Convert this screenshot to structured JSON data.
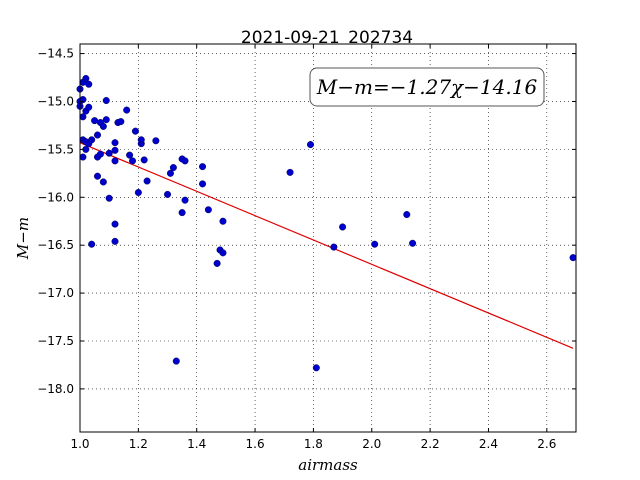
{
  "chart_data": {
    "type": "scatter",
    "title": "2021-09-21_202734",
    "xlabel": "airmass",
    "ylabel": "M−m",
    "xlim": [
      1.0,
      2.7
    ],
    "ylim": [
      -18.45,
      -14.4
    ],
    "x_ticks": [
      1.0,
      1.2,
      1.4,
      1.6,
      1.8,
      2.0,
      2.2,
      2.4,
      2.6
    ],
    "x_tick_labels": [
      "1.0",
      "1.2",
      "1.4",
      "1.6",
      "1.8",
      "2.0",
      "2.2",
      "2.4",
      "2.6"
    ],
    "y_ticks": [
      -14.5,
      -15.0,
      -15.5,
      -16.0,
      -16.5,
      -17.0,
      -17.5,
      -18.0
    ],
    "y_tick_labels": [
      "−14.5",
      "−15.0",
      "−15.5",
      "−16.0",
      "−16.5",
      "−17.0",
      "−17.5",
      "−18.0"
    ],
    "grid": true,
    "annotation": "M−m=−1.27χ−14.16",
    "fit": {
      "slope": -1.27,
      "intercept": -14.16,
      "x_range": [
        1.0,
        2.69
      ],
      "color": "#e00000"
    },
    "marker_color": "#0000cc",
    "points": [
      {
        "x": 1.0,
        "y": -14.87
      },
      {
        "x": 1.0,
        "y": -15.0
      },
      {
        "x": 1.0,
        "y": -15.05
      },
      {
        "x": 1.01,
        "y": -14.8
      },
      {
        "x": 1.02,
        "y": -14.76
      },
      {
        "x": 1.03,
        "y": -14.82
      },
      {
        "x": 1.01,
        "y": -14.98
      },
      {
        "x": 1.02,
        "y": -15.1
      },
      {
        "x": 1.03,
        "y": -15.06
      },
      {
        "x": 1.01,
        "y": -15.16
      },
      {
        "x": 1.01,
        "y": -15.4
      },
      {
        "x": 1.02,
        "y": -15.42
      },
      {
        "x": 1.03,
        "y": -15.44
      },
      {
        "x": 1.01,
        "y": -15.58
      },
      {
        "x": 1.02,
        "y": -15.5
      },
      {
        "x": 1.04,
        "y": -15.4
      },
      {
        "x": 1.05,
        "y": -15.2
      },
      {
        "x": 1.06,
        "y": -15.35
      },
      {
        "x": 1.06,
        "y": -15.58
      },
      {
        "x": 1.07,
        "y": -15.22
      },
      {
        "x": 1.08,
        "y": -15.26
      },
      {
        "x": 1.09,
        "y": -15.19
      },
      {
        "x": 1.09,
        "y": -14.99
      },
      {
        "x": 1.1,
        "y": -15.54
      },
      {
        "x": 1.07,
        "y": -15.55
      },
      {
        "x": 1.06,
        "y": -15.78
      },
      {
        "x": 1.08,
        "y": -15.84
      },
      {
        "x": 1.04,
        "y": -16.49
      },
      {
        "x": 1.1,
        "y": -16.01
      },
      {
        "x": 1.12,
        "y": -16.28
      },
      {
        "x": 1.12,
        "y": -16.46
      },
      {
        "x": 1.12,
        "y": -15.43
      },
      {
        "x": 1.12,
        "y": -15.51
      },
      {
        "x": 1.12,
        "y": -15.62
      },
      {
        "x": 1.13,
        "y": -15.22
      },
      {
        "x": 1.14,
        "y": -15.21
      },
      {
        "x": 1.16,
        "y": -15.09
      },
      {
        "x": 1.17,
        "y": -15.56
      },
      {
        "x": 1.18,
        "y": -15.62
      },
      {
        "x": 1.19,
        "y": -15.31
      },
      {
        "x": 1.2,
        "y": -15.95
      },
      {
        "x": 1.21,
        "y": -15.44
      },
      {
        "x": 1.21,
        "y": -15.4
      },
      {
        "x": 1.22,
        "y": -15.61
      },
      {
        "x": 1.23,
        "y": -15.83
      },
      {
        "x": 1.26,
        "y": -15.41
      },
      {
        "x": 1.3,
        "y": -15.97
      },
      {
        "x": 1.31,
        "y": -15.75
      },
      {
        "x": 1.32,
        "y": -15.69
      },
      {
        "x": 1.33,
        "y": -17.71
      },
      {
        "x": 1.35,
        "y": -16.16
      },
      {
        "x": 1.35,
        "y": -15.6
      },
      {
        "x": 1.36,
        "y": -15.62
      },
      {
        "x": 1.36,
        "y": -16.03
      },
      {
        "x": 1.42,
        "y": -15.86
      },
      {
        "x": 1.42,
        "y": -15.68
      },
      {
        "x": 1.44,
        "y": -16.13
      },
      {
        "x": 1.47,
        "y": -16.69
      },
      {
        "x": 1.48,
        "y": -16.55
      },
      {
        "x": 1.49,
        "y": -16.58
      },
      {
        "x": 1.49,
        "y": -16.25
      },
      {
        "x": 1.72,
        "y": -15.74
      },
      {
        "x": 1.79,
        "y": -15.45
      },
      {
        "x": 1.81,
        "y": -17.78
      },
      {
        "x": 1.87,
        "y": -16.52
      },
      {
        "x": 1.9,
        "y": -16.31
      },
      {
        "x": 2.01,
        "y": -16.49
      },
      {
        "x": 2.12,
        "y": -16.18
      },
      {
        "x": 2.14,
        "y": -16.48
      },
      {
        "x": 2.69,
        "y": -16.63
      }
    ]
  }
}
